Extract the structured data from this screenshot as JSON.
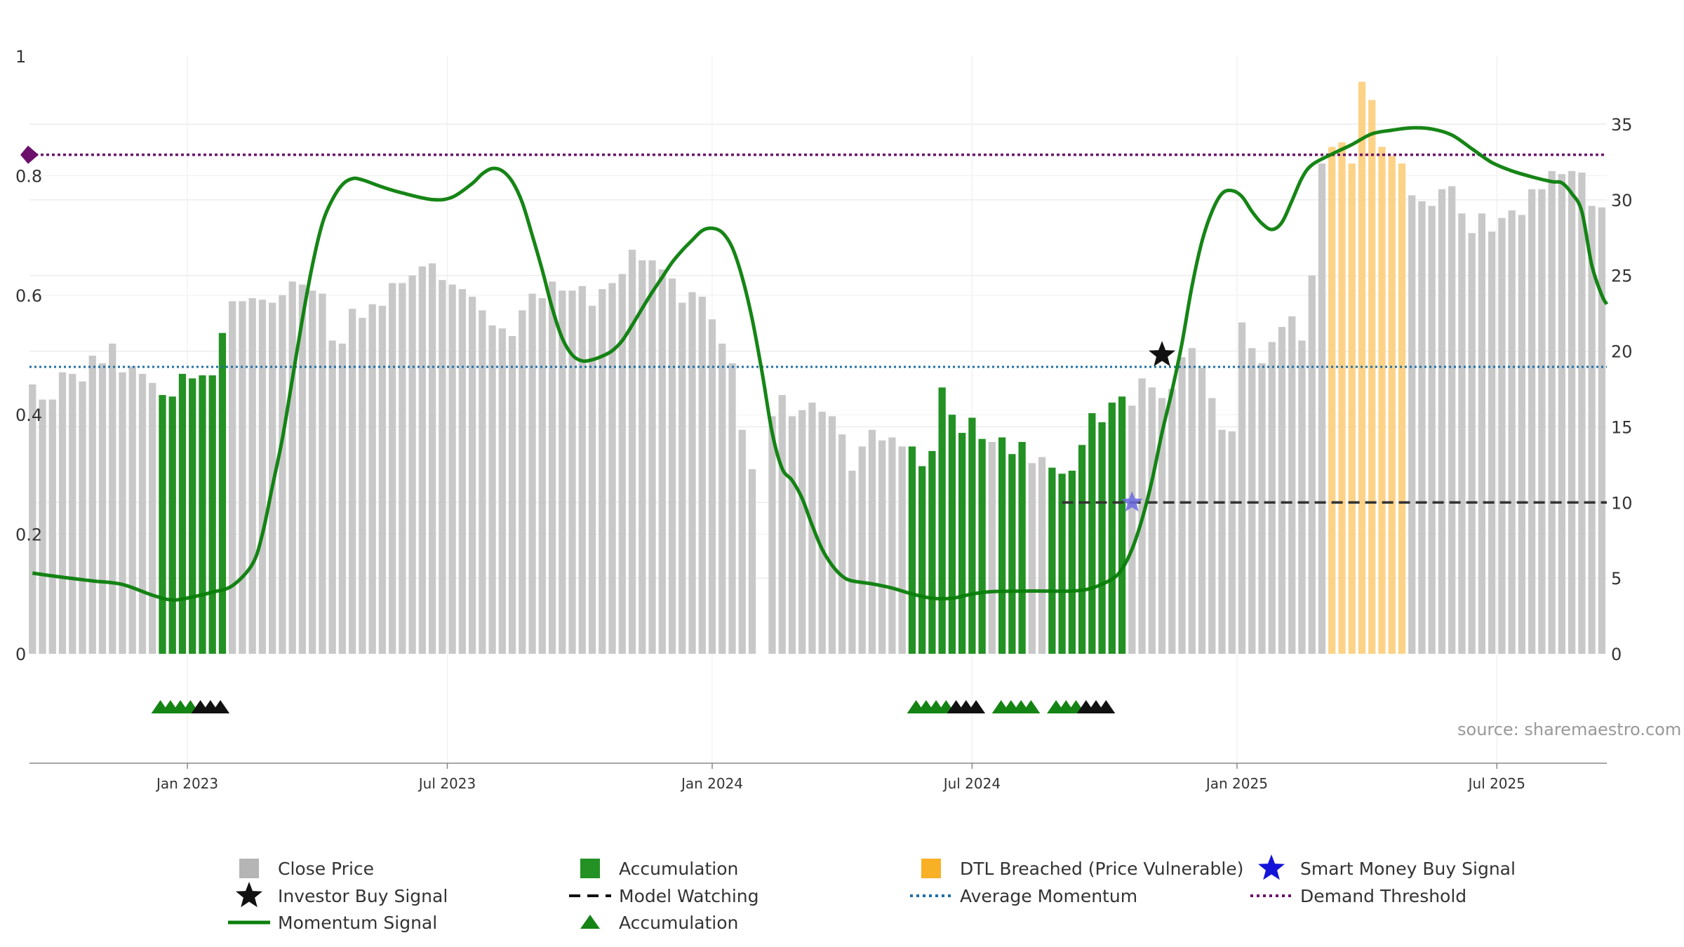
{
  "chart_data": {
    "type": "bar",
    "title": "",
    "source": "source: sharemaestro.com",
    "x_axis": {
      "ticks": [
        {
          "label": "Jan 2023",
          "week": 15.5
        },
        {
          "label": "Jul 2023",
          "week": 41.5
        },
        {
          "label": "Jan 2024",
          "week": 68
        },
        {
          "label": "Jul 2024",
          "week": 94
        },
        {
          "label": "Jan 2025",
          "week": 120.5
        },
        {
          "label": "Jul 2025",
          "week": 146.5
        }
      ],
      "range": [
        -0.3,
        157.5
      ]
    },
    "left_axis": {
      "ticks": [
        "0",
        "0.2",
        "0.4",
        "0.6",
        "0.8",
        "1"
      ],
      "range": [
        0,
        1
      ]
    },
    "right_axis": {
      "ticks": [
        "0",
        "5",
        "10",
        "15",
        "20",
        "25",
        "30",
        "35"
      ],
      "range": [
        0,
        40
      ]
    },
    "grid": true,
    "legend_position": "bottom",
    "close_price": [
      17.8,
      16.8,
      16.8,
      18.6,
      18.5,
      18.0,
      19.7,
      19.2,
      20.5,
      18.6,
      19.0,
      18.5,
      17.9,
      17.1,
      17.0,
      18.5,
      18.2,
      18.4,
      18.4,
      21.2,
      23.3,
      23.3,
      23.5,
      23.4,
      23.2,
      23.7,
      24.6,
      24.4,
      24.0,
      23.8,
      20.7,
      20.5,
      22.8,
      22.2,
      23.1,
      23.0,
      24.5,
      24.5,
      25.0,
      25.6,
      25.8,
      24.7,
      24.4,
      24.1,
      23.6,
      22.7,
      21.7,
      21.5,
      21.0,
      22.7,
      23.8,
      23.5,
      24.6,
      24.0,
      24.0,
      24.3,
      23.0,
      24.1,
      24.5,
      25.1,
      26.7,
      26.0,
      26.0,
      25.4,
      24.8,
      23.2,
      23.9,
      23.6,
      22.1,
      20.5,
      19.2,
      14.8,
      12.2,
      0.0,
      15.7,
      17.1,
      15.7,
      16.1,
      16.6,
      16.0,
      15.7,
      14.5,
      12.1,
      13.7,
      14.8,
      14.1,
      14.3,
      13.7,
      13.7,
      12.4,
      13.4,
      17.6,
      15.8,
      14.6,
      15.6,
      14.2,
      14.0,
      14.3,
      13.2,
      14.0,
      12.6,
      13.0,
      12.3,
      11.9,
      12.1,
      13.8,
      15.9,
      15.3,
      16.6,
      17.0,
      16.4,
      18.2,
      17.6,
      16.9,
      17.5,
      19.6,
      20.2,
      18.9,
      16.9,
      14.8,
      14.7,
      21.9,
      20.2,
      19.2,
      20.6,
      21.6,
      22.3,
      20.7,
      25.0,
      32.4,
      33.5,
      33.8,
      32.4,
      37.8,
      36.6,
      33.5,
      32.9,
      32.4,
      30.3,
      29.9,
      29.6,
      30.7,
      30.9,
      29.1,
      27.8,
      29.1,
      27.9,
      28.8,
      29.3,
      29.0,
      30.7,
      30.7,
      31.9,
      31.7,
      31.9,
      31.8,
      29.6,
      29.5
    ],
    "accumulation_weeks": [
      13,
      14,
      15,
      16,
      17,
      18,
      19,
      88,
      89,
      90,
      91,
      92,
      93,
      94,
      95,
      97,
      98,
      99,
      102,
      103,
      104,
      105,
      106,
      107,
      108,
      109
    ],
    "dtl_breached_weeks": [
      130,
      131,
      132,
      133,
      134,
      135,
      136,
      137
    ],
    "momentum_signal": [
      [
        0,
        0.135
      ],
      [
        3,
        0.128
      ],
      [
        6,
        0.122
      ],
      [
        9,
        0.116
      ],
      [
        12,
        0.098
      ],
      [
        14,
        0.09
      ],
      [
        16,
        0.095
      ],
      [
        18,
        0.103
      ],
      [
        20,
        0.114
      ],
      [
        22,
        0.15
      ],
      [
        23,
        0.2
      ],
      [
        24,
        0.28
      ],
      [
        25,
        0.36
      ],
      [
        26,
        0.46
      ],
      [
        27,
        0.56
      ],
      [
        28,
        0.65
      ],
      [
        29,
        0.72
      ],
      [
        30,
        0.76
      ],
      [
        31,
        0.785
      ],
      [
        32,
        0.795
      ],
      [
        33,
        0.793
      ],
      [
        35,
        0.781
      ],
      [
        37,
        0.771
      ],
      [
        40,
        0.76
      ],
      [
        42,
        0.764
      ],
      [
        44,
        0.787
      ],
      [
        45,
        0.803
      ],
      [
        46,
        0.812
      ],
      [
        47,
        0.808
      ],
      [
        48,
        0.79
      ],
      [
        49,
        0.755
      ],
      [
        50,
        0.7
      ],
      [
        51,
        0.642
      ],
      [
        52,
        0.578
      ],
      [
        53,
        0.528
      ],
      [
        54,
        0.5
      ],
      [
        55,
        0.49
      ],
      [
        56,
        0.492
      ],
      [
        57,
        0.498
      ],
      [
        58,
        0.507
      ],
      [
        59,
        0.524
      ],
      [
        60,
        0.55
      ],
      [
        61,
        0.578
      ],
      [
        62,
        0.605
      ],
      [
        63,
        0.63
      ],
      [
        64,
        0.655
      ],
      [
        65,
        0.675
      ],
      [
        66,
        0.692
      ],
      [
        67,
        0.708
      ],
      [
        68,
        0.712
      ],
      [
        69,
        0.705
      ],
      [
        70,
        0.68
      ],
      [
        71,
        0.63
      ],
      [
        72,
        0.56
      ],
      [
        73,
        0.47
      ],
      [
        74,
        0.37
      ],
      [
        75,
        0.31
      ],
      [
        76,
        0.29
      ],
      [
        77,
        0.26
      ],
      [
        78,
        0.215
      ],
      [
        79,
        0.175
      ],
      [
        80,
        0.148
      ],
      [
        81,
        0.13
      ],
      [
        82,
        0.122
      ],
      [
        84,
        0.117
      ],
      [
        86,
        0.11
      ],
      [
        88,
        0.1
      ],
      [
        90,
        0.093
      ],
      [
        92,
        0.093
      ],
      [
        94,
        0.1
      ],
      [
        96,
        0.104
      ],
      [
        100,
        0.105
      ],
      [
        104,
        0.105
      ],
      [
        106,
        0.11
      ],
      [
        108,
        0.125
      ],
      [
        109,
        0.142
      ],
      [
        110,
        0.175
      ],
      [
        111,
        0.225
      ],
      [
        112,
        0.29
      ],
      [
        113,
        0.37
      ],
      [
        114,
        0.44
      ],
      [
        115,
        0.52
      ],
      [
        116,
        0.615
      ],
      [
        117,
        0.69
      ],
      [
        118,
        0.74
      ],
      [
        119,
        0.77
      ],
      [
        120,
        0.775
      ],
      [
        121,
        0.765
      ],
      [
        122,
        0.74
      ],
      [
        123,
        0.72
      ],
      [
        124,
        0.71
      ],
      [
        125,
        0.722
      ],
      [
        126,
        0.758
      ],
      [
        127,
        0.796
      ],
      [
        128,
        0.818
      ],
      [
        130,
        0.836
      ],
      [
        132,
        0.852
      ],
      [
        134,
        0.87
      ],
      [
        136,
        0.876
      ],
      [
        138,
        0.88
      ],
      [
        140,
        0.878
      ],
      [
        142,
        0.868
      ],
      [
        144,
        0.845
      ],
      [
        146,
        0.822
      ],
      [
        148,
        0.808
      ],
      [
        150,
        0.798
      ],
      [
        152,
        0.79
      ],
      [
        153,
        0.788
      ],
      [
        154,
        0.77
      ],
      [
        155,
        0.74
      ],
      [
        156,
        0.65
      ],
      [
        157,
        0.6
      ],
      [
        157.5,
        0.585
      ]
    ],
    "average_momentum": 0.48,
    "demand_threshold": 0.835,
    "model_watching": {
      "level": 10,
      "from_week": 103,
      "to_week": 157.5
    },
    "investor_buy_signal": {
      "week": 113,
      "value": 0.5
    },
    "smart_money_buy_signal": {
      "week": 110,
      "price": 10
    },
    "accumulation_triangles": [
      "green",
      "green",
      "green",
      "green",
      "black",
      "black",
      "black",
      "green",
      "green",
      "green",
      "green",
      "black",
      "black",
      "black",
      "green",
      "green",
      "green",
      "green",
      "green",
      "green",
      "green",
      "black",
      "black",
      "black"
    ],
    "accumulation_triangle_weeks": [
      12.8,
      13.8,
      14.8,
      15.8,
      16.8,
      17.8,
      18.8,
      88.4,
      89.4,
      90.4,
      91.4,
      92.4,
      93.4,
      94.4,
      96.9,
      97.9,
      98.9,
      99.9,
      102.4,
      103.4,
      104.4,
      105.4,
      106.4,
      107.4
    ],
    "colors": {
      "close_price": "#c8c8c8",
      "accumulation": "#239123",
      "dtl_breached": "#fcd287",
      "momentum": "#0a7e0a",
      "average_momentum": "#1f6fa6",
      "demand_threshold": "#6b0f6b",
      "model_watching": "#333333",
      "investor_buy": "#111111",
      "smart_money": "#6a6ae0",
      "accumulation_marker": "#148414"
    },
    "legend": [
      {
        "label": "Close Price",
        "symbol": "square",
        "color": "#b5b5b5"
      },
      {
        "label": "Accumulation",
        "symbol": "square",
        "color": "#239123"
      },
      {
        "label": "DTL Breached (Price Vulnerable)",
        "symbol": "square",
        "color": "#f8b027"
      },
      {
        "label": "Smart Money Buy Signal",
        "symbol": "star",
        "color": "#1414d8"
      },
      {
        "label": "Investor Buy Signal",
        "symbol": "star",
        "color": "#111111"
      },
      {
        "label": "Model Watching",
        "symbol": "dash",
        "color": "#111111"
      },
      {
        "label": "Average Momentum",
        "symbol": "dot",
        "color": "#1f6fa6"
      },
      {
        "label": "Demand Threshold",
        "symbol": "dot",
        "color": "#6b0f6b"
      },
      {
        "label": "Momentum Signal",
        "symbol": "line",
        "color": "#0a7e0a"
      },
      {
        "label": "Accumulation",
        "symbol": "triangle",
        "color": "#148414"
      }
    ]
  }
}
